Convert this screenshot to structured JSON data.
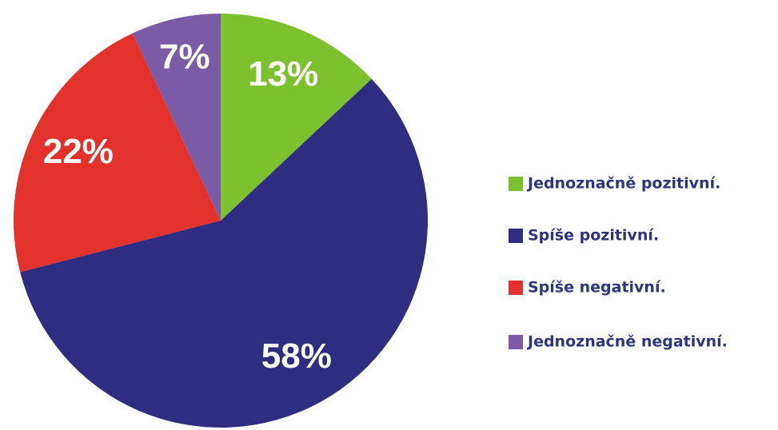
{
  "chart_data": {
    "type": "pie",
    "categories": [
      "Jednoznačně pozitivní.",
      "Spíše pozitivní.",
      "Spíše negativní.",
      "Jednoznačně negativní."
    ],
    "values": [
      13,
      58,
      22,
      7
    ],
    "value_labels": [
      "13%",
      "58%",
      "22%",
      "7%"
    ],
    "colors": [
      "#7dc12f",
      "#2e2d82",
      "#e3322b",
      "#7b5aa6"
    ],
    "legend": "right"
  }
}
